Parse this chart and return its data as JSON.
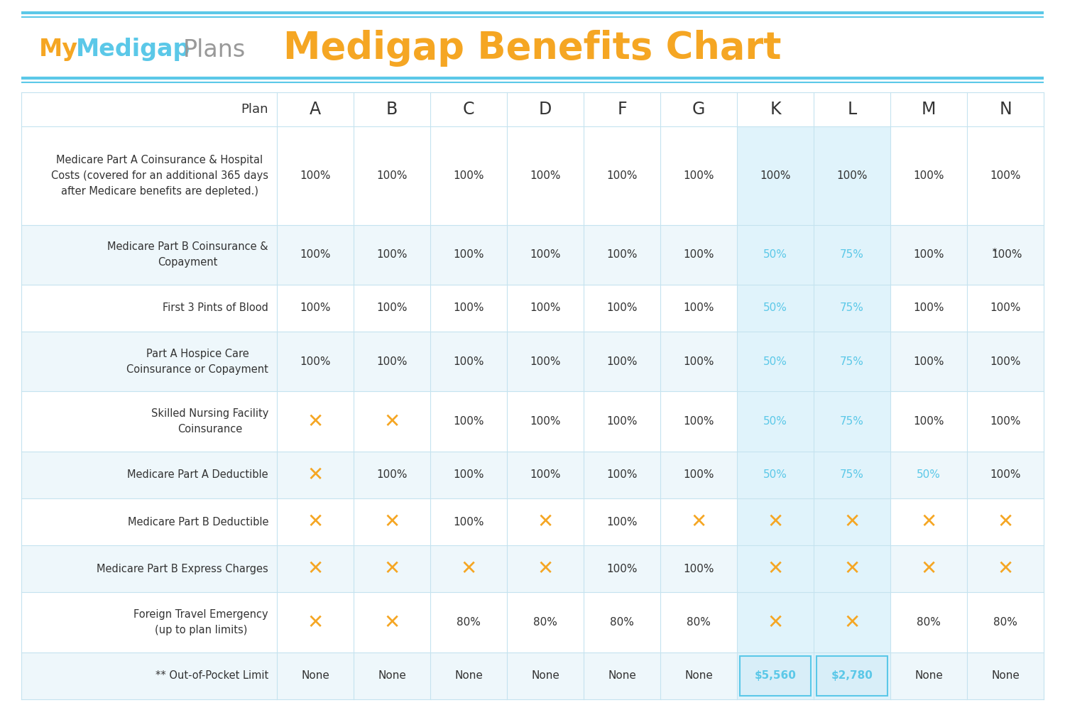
{
  "title": "Medigap Benefits Chart",
  "bg_color": "#ffffff",
  "header_line_color": "#5bc8e8",
  "alt_row_color": "#eef7fb",
  "white_row_color": "#ffffff",
  "orange_color": "#f5a623",
  "blue_color": "#5bc8e8",
  "dark_text": "#333333",
  "columns": [
    "A",
    "B",
    "C",
    "D",
    "F",
    "G",
    "K",
    "L",
    "M",
    "N"
  ],
  "row_labels": [
    "Medicare Part A Coinsurance & Hospital\nCosts (covered for an additional 365 days\nafter Medicare benefits are depleted.)",
    "Medicare Part B Coinsurance &\nCopayment",
    "First 3 Pints of Blood",
    "Part A Hospice Care\nCoinsurance or Copayment",
    "Skilled Nursing Facility\nCoinsurance",
    "Medicare Part A Deductible",
    "Medicare Part B Deductible",
    "Medicare Part B Express Charges",
    "Foreign Travel Emergency\n(up to plan limits)",
    "** Out-of-Pocket Limit"
  ],
  "table_data": [
    [
      "100%",
      "100%",
      "100%",
      "100%",
      "100%",
      "100%",
      "100%",
      "100%",
      "100%",
      "100%"
    ],
    [
      "100%",
      "100%",
      "100%",
      "100%",
      "100%",
      "100%",
      "50%",
      "75%",
      "100%",
      "*100%"
    ],
    [
      "100%",
      "100%",
      "100%",
      "100%",
      "100%",
      "100%",
      "50%",
      "75%",
      "100%",
      "100%"
    ],
    [
      "100%",
      "100%",
      "100%",
      "100%",
      "100%",
      "100%",
      "50%",
      "75%",
      "100%",
      "100%"
    ],
    [
      "X",
      "X",
      "100%",
      "100%",
      "100%",
      "100%",
      "50%",
      "75%",
      "100%",
      "100%"
    ],
    [
      "X",
      "100%",
      "100%",
      "100%",
      "100%",
      "100%",
      "50%",
      "75%",
      "50%",
      "100%"
    ],
    [
      "X",
      "X",
      "100%",
      "X",
      "100%",
      "X",
      "X",
      "X",
      "X",
      "X"
    ],
    [
      "X",
      "X",
      "X",
      "X",
      "100%",
      "100%",
      "X",
      "X",
      "X",
      "X"
    ],
    [
      "X",
      "X",
      "80%",
      "80%",
      "80%",
      "80%",
      "X",
      "X",
      "80%",
      "80%"
    ],
    [
      "None",
      "None",
      "None",
      "None",
      "None",
      "None",
      "$5,560",
      "$2,780",
      "None",
      "None"
    ]
  ],
  "cell_colors": [
    [
      "dark",
      "dark",
      "dark",
      "dark",
      "dark",
      "dark",
      "dark",
      "dark",
      "dark",
      "dark"
    ],
    [
      "dark",
      "dark",
      "dark",
      "dark",
      "dark",
      "dark",
      "blue",
      "blue",
      "dark",
      "dark"
    ],
    [
      "dark",
      "dark",
      "dark",
      "dark",
      "dark",
      "dark",
      "blue",
      "blue",
      "dark",
      "dark"
    ],
    [
      "dark",
      "dark",
      "dark",
      "dark",
      "dark",
      "dark",
      "blue",
      "blue",
      "dark",
      "dark"
    ],
    [
      "orange",
      "orange",
      "dark",
      "dark",
      "dark",
      "dark",
      "blue",
      "blue",
      "dark",
      "dark"
    ],
    [
      "orange",
      "dark",
      "dark",
      "dark",
      "dark",
      "dark",
      "blue",
      "blue",
      "blue",
      "dark"
    ],
    [
      "orange",
      "orange",
      "dark",
      "orange",
      "dark",
      "orange",
      "orange",
      "orange",
      "orange",
      "orange"
    ],
    [
      "orange",
      "orange",
      "orange",
      "orange",
      "dark",
      "dark",
      "orange",
      "orange",
      "orange",
      "orange"
    ],
    [
      "orange",
      "orange",
      "dark",
      "dark",
      "dark",
      "dark",
      "orange",
      "orange",
      "dark",
      "dark"
    ],
    [
      "dark",
      "dark",
      "dark",
      "dark",
      "dark",
      "dark",
      "blue_bold",
      "blue_bold",
      "dark",
      "dark"
    ]
  ],
  "row_alt": [
    false,
    true,
    false,
    true,
    false,
    true,
    false,
    true,
    false,
    true
  ],
  "row_heights_rel": [
    115,
    70,
    55,
    70,
    70,
    55,
    55,
    55,
    70,
    55
  ]
}
